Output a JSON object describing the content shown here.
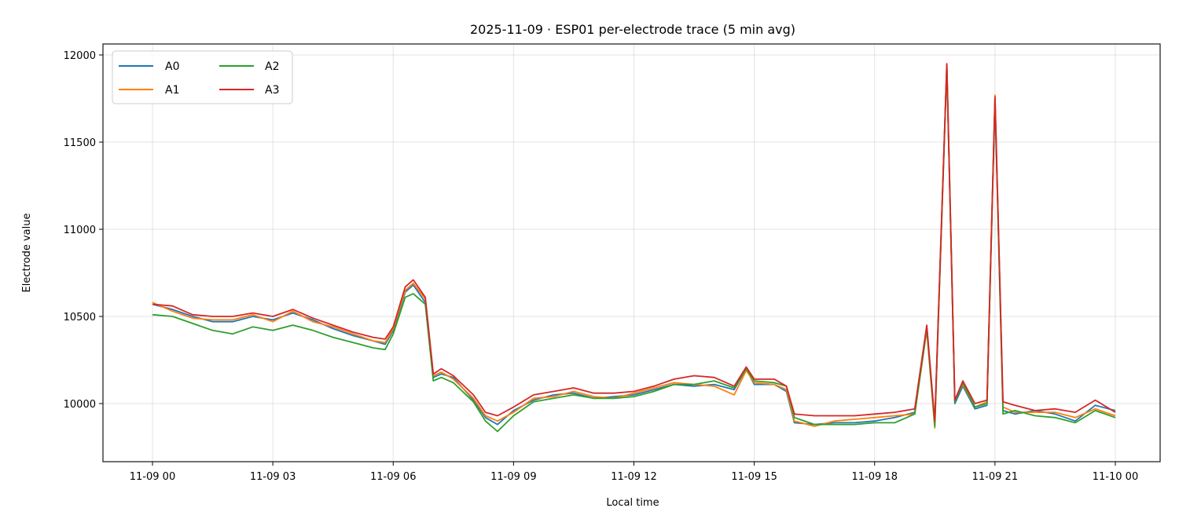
{
  "chart_data": {
    "type": "line",
    "title": "2025-11-09 · ESP01 per-electrode trace (5 min avg)",
    "xlabel": "Local time",
    "ylabel": "Electrode value",
    "ylim": [
      9670,
      12070
    ],
    "xlim_hours": [
      -1.23,
      25.12
    ],
    "grid": true,
    "legend_position": "upper left",
    "legend_columns": 2,
    "x_ticks": [
      {
        "hours": 0,
        "label": "11-09 00"
      },
      {
        "hours": 3,
        "label": "11-09 03"
      },
      {
        "hours": 6,
        "label": "11-09 06"
      },
      {
        "hours": 9,
        "label": "11-09 09"
      },
      {
        "hours": 12,
        "label": "11-09 12"
      },
      {
        "hours": 15,
        "label": "11-09 15"
      },
      {
        "hours": 18,
        "label": "11-09 18"
      },
      {
        "hours": 21,
        "label": "11-09 21"
      },
      {
        "hours": 24,
        "label": "11-10 00"
      }
    ],
    "y_ticks": [
      10000,
      10500,
      11000,
      11500,
      12000
    ],
    "x_hours": [
      0,
      0.5,
      1,
      1.5,
      2,
      2.5,
      3,
      3.5,
      4,
      4.5,
      5,
      5.5,
      5.8,
      6,
      6.3,
      6.5,
      6.8,
      7,
      7.2,
      7.5,
      8,
      8.3,
      8.6,
      9,
      9.5,
      10,
      10.5,
      11,
      11.5,
      12,
      12.5,
      13,
      13.5,
      14,
      14.5,
      14.8,
      15,
      15.5,
      15.8,
      16,
      16.5,
      17,
      17.5,
      18,
      18.5,
      19,
      19.3,
      19.5,
      19.8,
      20,
      20.2,
      20.5,
      20.8,
      21,
      21.2,
      21.5,
      22,
      22.5,
      23,
      23.5,
      24
    ],
    "series": [
      {
        "name": "A0",
        "color": "#1f77b4",
        "values": [
          10570,
          10540,
          10500,
          10470,
          10470,
          10500,
          10480,
          10520,
          10480,
          10430,
          10390,
          10360,
          10340,
          10420,
          10640,
          10680,
          10580,
          10150,
          10170,
          10150,
          10020,
          9920,
          9880,
          9960,
          10020,
          10050,
          10060,
          10030,
          10040,
          10050,
          10080,
          10110,
          10100,
          10110,
          10080,
          10200,
          10110,
          10110,
          10070,
          9890,
          9880,
          9890,
          9890,
          9900,
          9920,
          9950,
          10440,
          9890,
          11940,
          10000,
          10100,
          9970,
          9990,
          11750,
          9960,
          9940,
          9960,
          9940,
          9900,
          9990,
          9960
        ]
      },
      {
        "name": "A1",
        "color": "#ff7f0e",
        "values": [
          10580,
          10530,
          10490,
          10480,
          10480,
          10510,
          10470,
          10530,
          10470,
          10440,
          10400,
          10360,
          10350,
          10430,
          10650,
          10690,
          10600,
          10160,
          10180,
          10140,
          10030,
          9930,
          9900,
          9950,
          10030,
          10040,
          10070,
          10040,
          10030,
          10060,
          10090,
          10120,
          10110,
          10100,
          10050,
          10190,
          10120,
          10110,
          10080,
          9900,
          9870,
          9900,
          9910,
          9920,
          9930,
          9940,
          10420,
          9860,
          11950,
          10020,
          10110,
          9980,
          10010,
          11770,
          9980,
          9950,
          9950,
          9950,
          9920,
          9970,
          9930
        ]
      },
      {
        "name": "A2",
        "color": "#2ca02c",
        "values": [
          10510,
          10500,
          10460,
          10420,
          10400,
          10440,
          10420,
          10450,
          10420,
          10380,
          10350,
          10320,
          10310,
          10400,
          10610,
          10630,
          10570,
          10130,
          10150,
          10120,
          10010,
          9900,
          9840,
          9930,
          10010,
          10030,
          10050,
          10030,
          10030,
          10040,
          10070,
          10110,
          10110,
          10130,
          10090,
          10200,
          10130,
          10120,
          10100,
          9920,
          9880,
          9880,
          9880,
          9890,
          9890,
          9940,
          10430,
          9870,
          11930,
          10010,
          10120,
          9980,
          10000,
          11740,
          9940,
          9960,
          9930,
          9920,
          9890,
          9960,
          9920
        ]
      },
      {
        "name": "A3",
        "color": "#d62728",
        "values": [
          10570,
          10560,
          10510,
          10500,
          10500,
          10520,
          10500,
          10540,
          10490,
          10450,
          10410,
          10380,
          10370,
          10440,
          10670,
          10710,
          10610,
          10170,
          10200,
          10160,
          10050,
          9950,
          9930,
          9980,
          10050,
          10070,
          10090,
          10060,
          10060,
          10070,
          10100,
          10140,
          10160,
          10150,
          10100,
          10210,
          10140,
          10140,
          10100,
          9940,
          9930,
          9930,
          9930,
          9940,
          9950,
          9970,
          10450,
          9900,
          11950,
          10020,
          10130,
          10000,
          10020,
          11760,
          10010,
          9990,
          9960,
          9970,
          9950,
          10020,
          9950
        ]
      }
    ]
  },
  "legend": {
    "items": [
      {
        "label": "A0",
        "color": "#1f77b4"
      },
      {
        "label": "A1",
        "color": "#ff7f0e"
      },
      {
        "label": "A2",
        "color": "#2ca02c"
      },
      {
        "label": "A3",
        "color": "#d62728"
      }
    ]
  }
}
